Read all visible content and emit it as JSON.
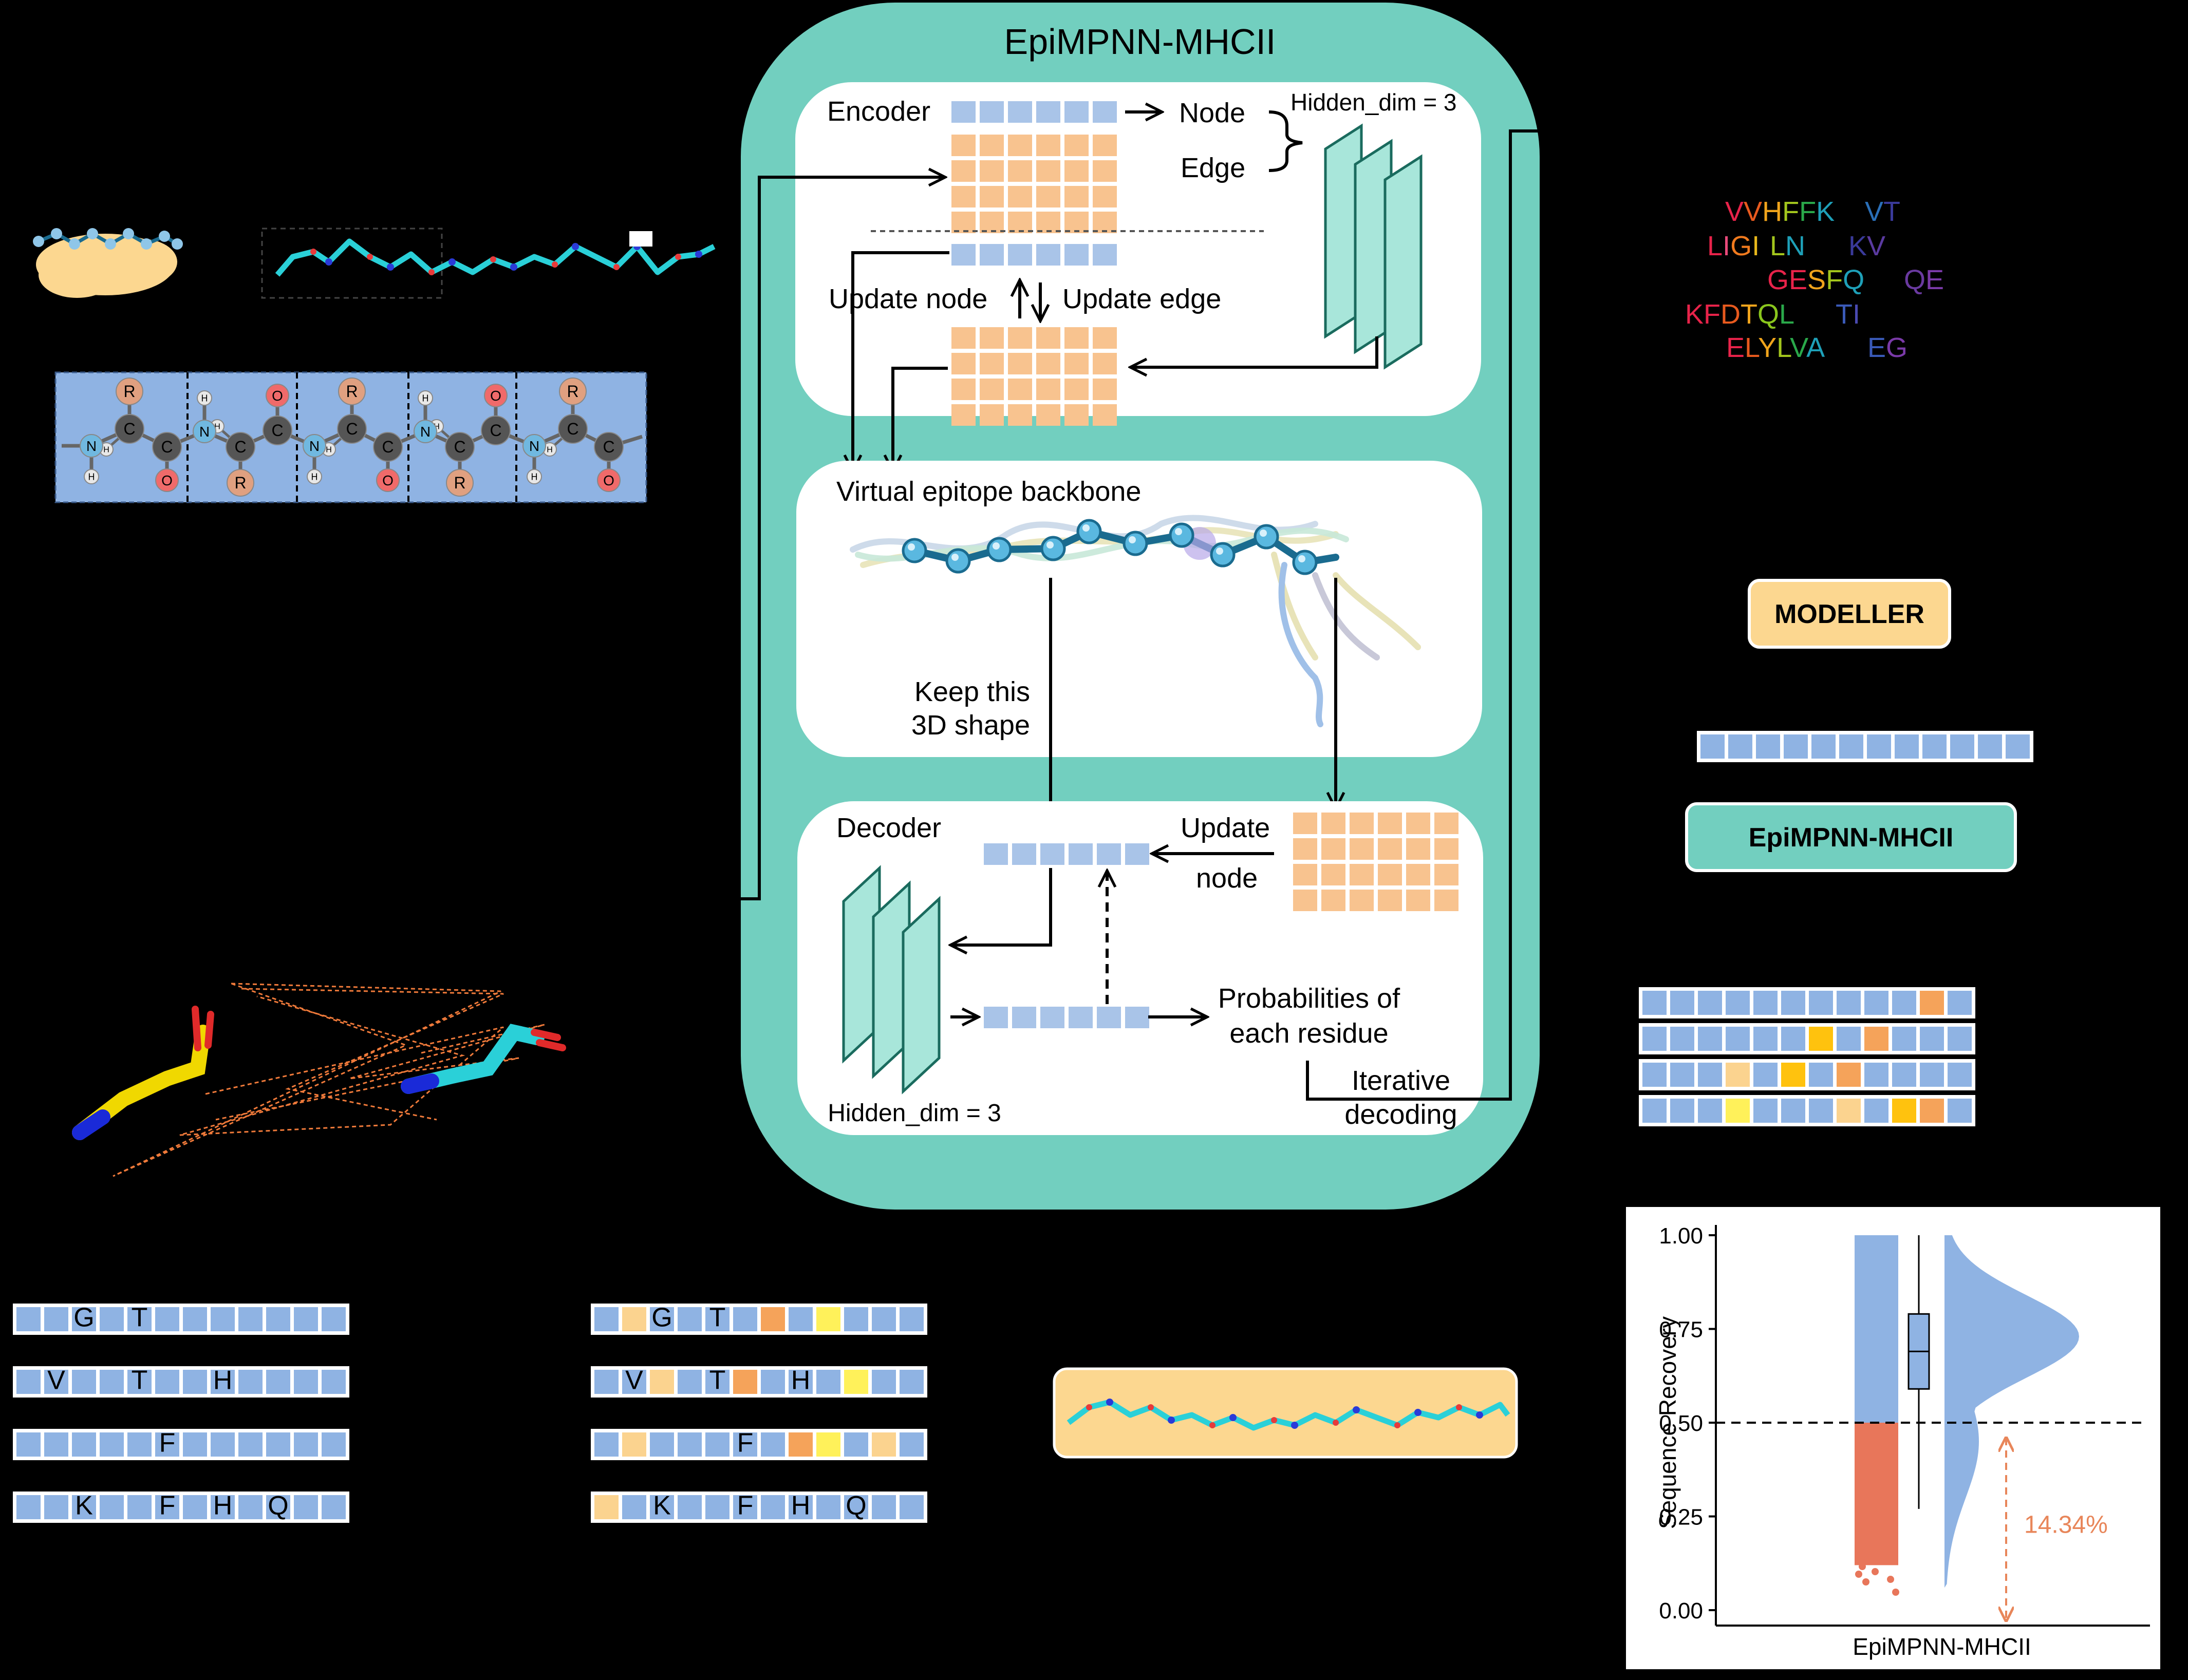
{
  "main_title": "EpiMPNN-MHCII",
  "encoder": {
    "label": "Encoder",
    "node_label": "Node",
    "edge_label": "Edge",
    "hidden_dim_label": "Hidden_dim = 3",
    "update_node_label": "Update node",
    "update_edge_label": "Update edge"
  },
  "backbone": {
    "label": "Virtual epitope backbone",
    "keep_shape_line1": "Keep this",
    "keep_shape_line2": "3D shape"
  },
  "decoder": {
    "label": "Decoder",
    "update_label": "Update",
    "node_label": "node",
    "prob_line1": "Probabilities of",
    "prob_line2": "each residue",
    "iterative_line1": "Iterative",
    "iterative_line2": "decoding",
    "hidden_dim_label": "Hidden_dim = 3"
  },
  "sequence_words": [
    {
      "text": "VVHFFK",
      "colors": [
        "#e8234a",
        "#e85a1e",
        "#f0a41c",
        "#a3c61d",
        "#2aa84a",
        "#1ea0b8"
      ]
    },
    {
      "text": "VT",
      "colors": [
        "#2a6fb8",
        "#3a3a9a"
      ]
    },
    {
      "text": "LIGI",
      "colors": [
        "#e8234a",
        "#e84a7a",
        "#f07a1e",
        "#e8b81c"
      ]
    },
    {
      "text": "LN",
      "colors": [
        "#a3c61d",
        "#1ea0b8"
      ]
    },
    {
      "text": "KV",
      "colors": [
        "#3a3a9a",
        "#5a3aa0"
      ]
    },
    {
      "text": "GESFQ",
      "colors": [
        "#e8234a",
        "#e8234a",
        "#f0a41c",
        "#a3c61d",
        "#1ea0b8"
      ]
    },
    {
      "text": "QE",
      "colors": [
        "#6a3aa0",
        "#7a3aa8"
      ]
    },
    {
      "text": "KFDTQL",
      "colors": [
        "#e8234a",
        "#e8234a",
        "#e85a1e",
        "#f0a41c",
        "#8ac61d",
        "#2aa84a"
      ]
    },
    {
      "text": "TI",
      "colors": [
        "#3a5ab8",
        "#4a4ab0"
      ]
    },
    {
      "text": "ELYLVA",
      "colors": [
        "#e8234a",
        "#e85a1e",
        "#f0a41c",
        "#a3c61d",
        "#2aa84a",
        "#1ea0b8"
      ]
    },
    {
      "text": "EG",
      "colors": [
        "#3a5ab8",
        "#7a3aa8"
      ]
    }
  ],
  "modeller_label": "MODELLER",
  "epimpnn_box_label": "EpiMPNN-MHCII",
  "atom_labels": {
    "R": "R",
    "C": "C",
    "N": "N",
    "O": "O",
    "H": "H"
  },
  "seq_rows_left": [
    [
      "",
      "",
      "G",
      "",
      "T",
      "",
      "",
      "",
      "",
      "",
      "",
      ""
    ],
    [
      "",
      "V",
      "",
      "",
      "T",
      "",
      "",
      "H",
      "",
      "",
      "",
      ""
    ],
    [
      "",
      "",
      "",
      "",
      "",
      "F",
      "",
      "",
      "",
      "",
      "",
      ""
    ],
    [
      "",
      "",
      "K",
      "",
      "",
      "F",
      "",
      "H",
      "",
      "Q",
      "",
      ""
    ]
  ],
  "seq_rows_mid": [
    [
      "",
      "",
      "G",
      "",
      "T",
      "",
      "",
      "",
      "",
      "",
      "",
      ""
    ],
    [
      "",
      "V",
      "",
      "",
      "T",
      "",
      "",
      "H",
      "",
      "",
      "",
      ""
    ],
    [
      "",
      "",
      "",
      "",
      "",
      "F",
      "",
      "",
      "",
      "",
      "",
      ""
    ],
    [
      "",
      "",
      "K",
      "",
      "",
      "F",
      "",
      "H",
      "",
      "Q",
      "",
      ""
    ]
  ],
  "seq_rows_mid_colors": [
    [
      "#8fb3e3",
      "#fbd38f",
      "#8fb3e3",
      "#8fb3e3",
      "#8fb3e3",
      "#8fb3e3",
      "#f5a35a",
      "#8fb3e3",
      "#fff15a",
      "#8fb3e3",
      "#8fb3e3",
      "#8fb3e3"
    ],
    [
      "#8fb3e3",
      "#8fb3e3",
      "#fbd38f",
      "#8fb3e3",
      "#8fb3e3",
      "#f5a35a",
      "#8fb3e3",
      "#8fb3e3",
      "#8fb3e3",
      "#fff15a",
      "#8fb3e3",
      "#8fb3e3"
    ],
    [
      "#8fb3e3",
      "#fbd38f",
      "#8fb3e3",
      "#8fb3e3",
      "#8fb3e3",
      "#8fb3e3",
      "#8fb3e3",
      "#f5a35a",
      "#fff15a",
      "#8fb3e3",
      "#fbd38f",
      "#8fb3e3"
    ],
    [
      "#fbd38f",
      "#8fb3e3",
      "#8fb3e3",
      "#8fb3e3",
      "#8fb3e3",
      "#8fb3e3",
      "#8fb3e3",
      "#8fb3e3",
      "#8fb3e3",
      "#8fb3e3",
      "#8fb3e3",
      "#8fb3e3"
    ]
  ],
  "decode_rows_colors": [
    [
      "#8fb3e3",
      "#8fb3e3",
      "#8fb3e3",
      "#8fb3e3",
      "#8fb3e3",
      "#8fb3e3",
      "#8fb3e3",
      "#8fb3e3",
      "#8fb3e3",
      "#8fb3e3",
      "#f5a35a",
      "#8fb3e3"
    ],
    [
      "#8fb3e3",
      "#8fb3e3",
      "#8fb3e3",
      "#8fb3e3",
      "#8fb3e3",
      "#8fb3e3",
      "#ffc20e",
      "#8fb3e3",
      "#f5a35a",
      "#8fb3e3",
      "#8fb3e3",
      "#8fb3e3"
    ],
    [
      "#8fb3e3",
      "#8fb3e3",
      "#8fb3e3",
      "#fbd38f",
      "#8fb3e3",
      "#ffc20e",
      "#8fb3e3",
      "#f5a35a",
      "#8fb3e3",
      "#8fb3e3",
      "#8fb3e3",
      "#8fb3e3"
    ],
    [
      "#8fb3e3",
      "#8fb3e3",
      "#8fb3e3",
      "#fff15a",
      "#8fb3e3",
      "#8fb3e3",
      "#8fb3e3",
      "#fbd38f",
      "#8fb3e3",
      "#ffc20e",
      "#f5a35a",
      "#8fb3e3"
    ]
  ],
  "colors": {
    "teal": "#72cfbf",
    "node_blue": "#a9c4e8",
    "edge_orange": "#f8c38f",
    "cell_blue": "#8fb3e3",
    "seq_orange_fill": "#fbd38f",
    "recovery_orange": "#e8765a",
    "violin_blue": "#8fb3e3"
  },
  "chart_data": {
    "type": "violin",
    "category": "EpiMPNN-MHCII",
    "ylabel": "Sequence Recovery",
    "xlabel": "EpiMPNN-MHCII",
    "ylim": [
      0.0,
      1.0
    ],
    "yticks": [
      "0.00",
      "0.25",
      "0.50",
      "0.75",
      "1.00"
    ],
    "threshold": 0.5,
    "below_threshold_percent_label": "14.34%",
    "box": {
      "q1": 0.59,
      "median": 0.69,
      "q3": 0.79,
      "whisker_low": 0.27,
      "whisker_high": 1.0,
      "mean": 0.67
    },
    "density_peak": 0.73
  }
}
